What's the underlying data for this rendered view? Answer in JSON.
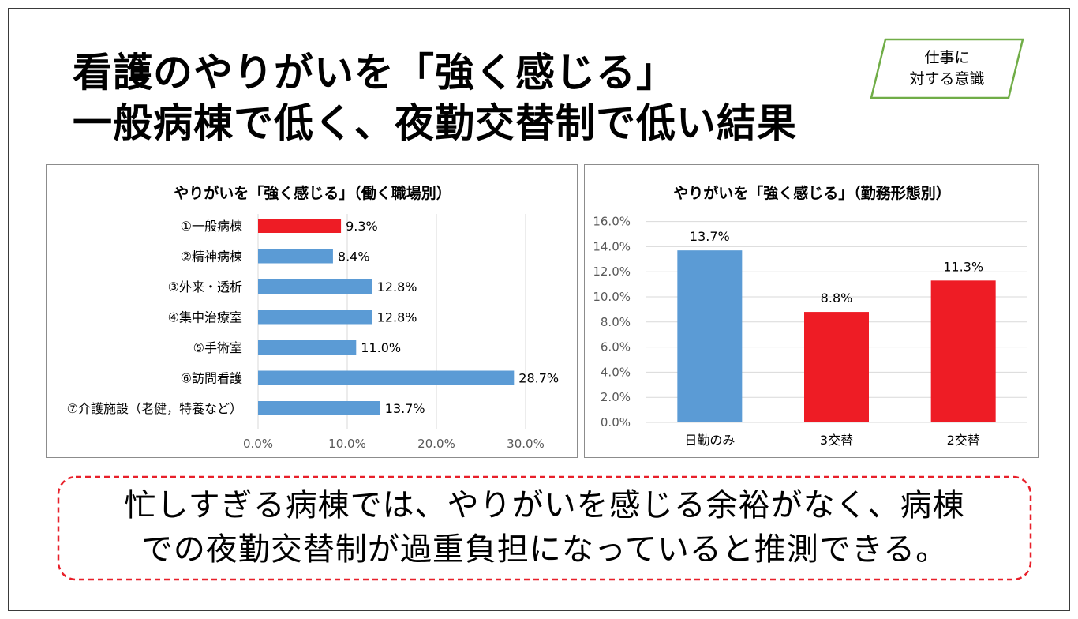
{
  "title": {
    "line1": "看護のやりがいを「強く感じる」",
    "line2": "一般病棟で低く、夜勤交替制で低い結果"
  },
  "badge": {
    "line1": "仕事に",
    "line2": "対する意識",
    "color": "#70ad47"
  },
  "conclusion": {
    "line1": "忙しすぎる病棟では、やりがいを感じる余裕がなく、病棟",
    "line2": "での夜勤交替制が過重負担になっていると推測できる。",
    "border_color": "#e8202a"
  },
  "colors": {
    "blue": "#5b9bd5",
    "red": "#ee1c25",
    "grid": "#d9d9d9"
  },
  "chart_data": [
    {
      "type": "bar",
      "orientation": "horizontal",
      "title": "やりがいを「強く感じる」（働く職場別）",
      "categories": [
        "①一般病棟",
        "②精神病棟",
        "③外来・透析",
        "④集中治療室",
        "⑤手術室",
        "⑥訪問看護",
        "⑦介護施設（老健，特養など）"
      ],
      "values": [
        9.3,
        8.4,
        12.8,
        12.8,
        11.0,
        28.7,
        13.7
      ],
      "value_labels": [
        "9.3%",
        "8.4%",
        "12.8%",
        "12.8%",
        "11.0%",
        "28.7%",
        "13.7%"
      ],
      "highlight": [
        true,
        false,
        false,
        false,
        false,
        false,
        false
      ],
      "xlim": [
        0,
        30
      ],
      "xticks": [
        "0.0%",
        "10.0%",
        "20.0%",
        "30.0%"
      ],
      "grid": true,
      "legend": "none"
    },
    {
      "type": "bar",
      "orientation": "vertical",
      "title": "やりがいを「強く感じる」（勤務形態別）",
      "categories": [
        "日勤のみ",
        "3交替",
        "2交替"
      ],
      "values": [
        13.7,
        8.8,
        11.3
      ],
      "value_labels": [
        "13.7%",
        "8.8%",
        "11.3%"
      ],
      "highlight": [
        false,
        true,
        true
      ],
      "ylim": [
        0,
        16
      ],
      "yticks": [
        "0.0%",
        "2.0%",
        "4.0%",
        "6.0%",
        "8.0%",
        "10.0%",
        "12.0%",
        "14.0%",
        "16.0%"
      ],
      "grid": true,
      "legend": "none"
    }
  ]
}
